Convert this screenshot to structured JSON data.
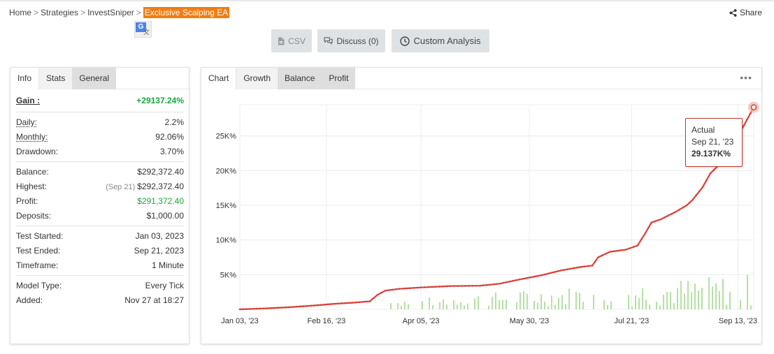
{
  "breadcrumb": {
    "home": "Home",
    "strategies": "Strategies",
    "user": "InvestSniper",
    "current": "Exclusive Scalping EA"
  },
  "share_label": "Share",
  "actions": {
    "csv": "CSV",
    "discuss": "Discuss (0)",
    "custom": "Custom Analysis"
  },
  "left_tabs": [
    "Info",
    "Stats",
    "General"
  ],
  "gain": {
    "label": "Gain :",
    "value": "+29137.24%"
  },
  "info_groups": [
    [
      {
        "label": "Daily:",
        "value": "2.2%",
        "underline": true
      },
      {
        "label": "Monthly:",
        "value": "92.06%",
        "underline": true
      },
      {
        "label": "Drawdown:",
        "value": "3.70%"
      }
    ],
    [
      {
        "label": "Balance:",
        "value": "$292,372.40"
      },
      {
        "label": "Highest:",
        "note": "(Sep 21)",
        "value": "$292,372.40"
      },
      {
        "label": "Profit:",
        "value": "$291,372.40",
        "green": true
      },
      {
        "label": "Deposits:",
        "value": "$1,000.00"
      }
    ],
    [
      {
        "label": "Test Started:",
        "value": "Jan 03, 2023"
      },
      {
        "label": "Test Ended:",
        "value": "Sep 21, 2023"
      },
      {
        "label": "Timeframe:",
        "value": "1 Minute"
      }
    ],
    [
      {
        "label": "Model Type:",
        "value": "Every Tick"
      },
      {
        "label": "Added:",
        "value": "Nov 27 at 18:27"
      }
    ]
  ],
  "chart_tabs": [
    "Chart",
    "Growth",
    "Balance",
    "Profit"
  ],
  "more_label": "•••",
  "tooltip": {
    "title": "Actual",
    "date": "Sep 21, '23",
    "value": "29.137K%"
  },
  "colors": {
    "line": "#d9413a",
    "bars": "#b5e0a4",
    "accent": "#f07d12",
    "positive": "#1aa83a"
  },
  "chart_data": {
    "type": "line",
    "x_ticks": [
      "Jan 03, '23",
      "Feb 16, '23",
      "Apr 05, '23",
      "May 30, '23",
      "Jul 21, '23",
      "Sep 13, '23"
    ],
    "y_ticks": [
      "5K%",
      "10K%",
      "15K%",
      "20K%",
      "25K%"
    ],
    "ylim": [
      0,
      29500
    ],
    "series": [
      {
        "name": "Actual",
        "points": [
          [
            "Jan 03",
            0
          ],
          [
            "Jan 15",
            120
          ],
          [
            "Jan 28",
            300
          ],
          [
            "Feb 10",
            550
          ],
          [
            "Feb 20",
            800
          ],
          [
            "Mar 01",
            950
          ],
          [
            "Mar 10",
            1150
          ],
          [
            "Mar 14",
            2100
          ],
          [
            "Mar 18",
            2700
          ],
          [
            "Mar 25",
            2950
          ],
          [
            "Apr 05",
            3150
          ],
          [
            "Apr 20",
            3350
          ],
          [
            "May 05",
            3400
          ],
          [
            "May 15",
            3700
          ],
          [
            "May 25",
            4300
          ],
          [
            "Jun 05",
            4900
          ],
          [
            "Jun 15",
            5600
          ],
          [
            "Jun 25",
            6100
          ],
          [
            "Jul 01",
            6300
          ],
          [
            "Jul 04",
            7500
          ],
          [
            "Jul 10",
            8300
          ],
          [
            "Jul 18",
            8600
          ],
          [
            "Jul 24",
            9200
          ],
          [
            "Jul 28",
            11000
          ],
          [
            "Jul 31",
            12500
          ],
          [
            "Aug 05",
            13000
          ],
          [
            "Aug 12",
            14000
          ],
          [
            "Aug 18",
            15000
          ],
          [
            "Aug 21",
            15800
          ],
          [
            "Aug 26",
            17600
          ],
          [
            "Aug 30",
            19600
          ],
          [
            "Sep 04",
            21000
          ],
          [
            "Sep 08",
            22800
          ],
          [
            "Sep 12",
            24500
          ],
          [
            "Sep 16",
            26500
          ],
          [
            "Sep 21",
            29137
          ]
        ]
      }
    ]
  }
}
